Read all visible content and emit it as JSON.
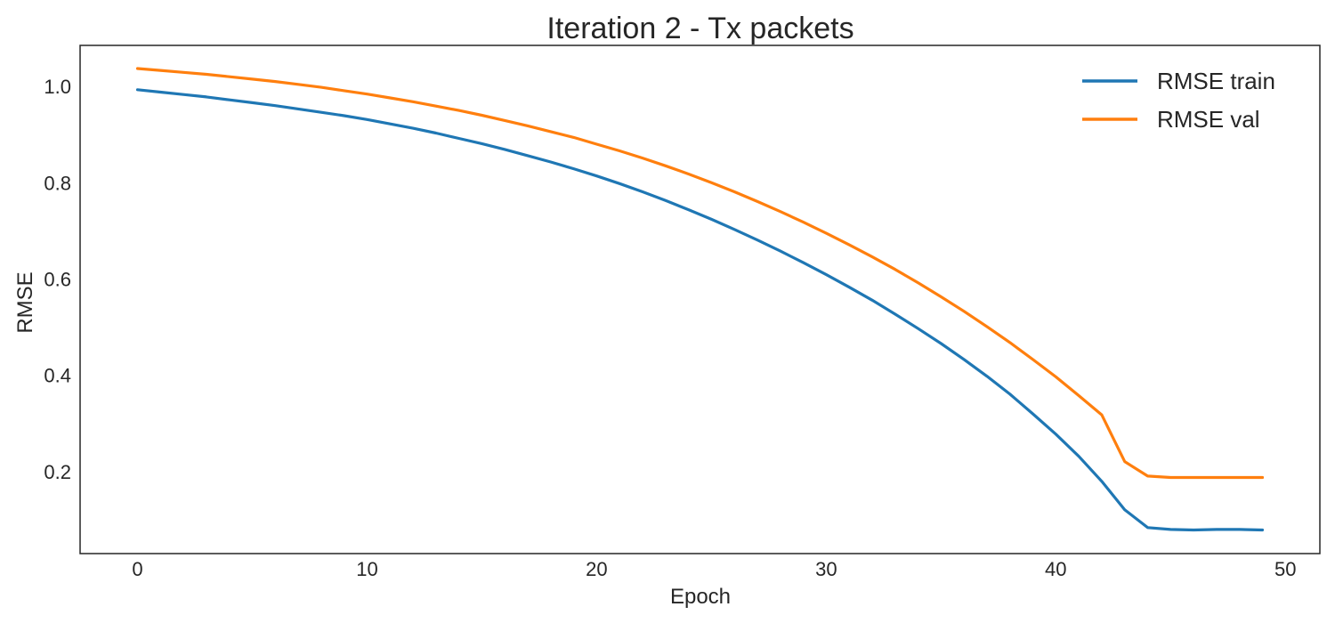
{
  "chart_data": {
    "type": "line",
    "title": "Iteration 2 - Tx packets",
    "xlabel": "Epoch",
    "ylabel": "RMSE",
    "xlim": [
      -2.5,
      51.5
    ],
    "ylim": [
      0.03,
      1.085
    ],
    "xticks": [
      0,
      10,
      20,
      30,
      40,
      50
    ],
    "yticks": [
      0.2,
      0.4,
      0.6,
      0.8,
      1.0
    ],
    "xtick_labels": [
      "0",
      "10",
      "20",
      "30",
      "40",
      "50"
    ],
    "ytick_labels": [
      "0.2",
      "0.4",
      "0.6",
      "0.8",
      "1.0"
    ],
    "grid": false,
    "legend_position": "top-right",
    "x": [
      0,
      1,
      2,
      3,
      4,
      5,
      6,
      7,
      8,
      9,
      10,
      11,
      12,
      13,
      14,
      15,
      16,
      17,
      18,
      19,
      20,
      21,
      22,
      23,
      24,
      25,
      26,
      27,
      28,
      29,
      30,
      31,
      32,
      33,
      34,
      35,
      36,
      37,
      38,
      39,
      40,
      41,
      42,
      43,
      44,
      45,
      46,
      47,
      48,
      49
    ],
    "series": [
      {
        "name": "RMSE train",
        "color": "#1f77b4",
        "values": [
          0.993,
          0.988,
          0.983,
          0.978,
          0.972,
          0.966,
          0.96,
          0.953,
          0.946,
          0.939,
          0.931,
          0.922,
          0.913,
          0.903,
          0.892,
          0.881,
          0.869,
          0.856,
          0.843,
          0.829,
          0.814,
          0.798,
          0.781,
          0.763,
          0.744,
          0.724,
          0.703,
          0.681,
          0.658,
          0.634,
          0.609,
          0.583,
          0.556,
          0.527,
          0.497,
          0.466,
          0.433,
          0.398,
          0.361,
          0.32,
          0.278,
          0.232,
          0.18,
          0.121,
          0.084,
          0.08,
          0.079,
          0.08,
          0.08,
          0.079
        ]
      },
      {
        "name": "RMSE val",
        "color": "#ff7f0e",
        "values": [
          1.037,
          1.033,
          1.029,
          1.025,
          1.02,
          1.015,
          1.01,
          1.004,
          0.998,
          0.991,
          0.984,
          0.976,
          0.968,
          0.959,
          0.95,
          0.94,
          0.929,
          0.918,
          0.906,
          0.894,
          0.88,
          0.866,
          0.851,
          0.835,
          0.818,
          0.8,
          0.781,
          0.761,
          0.74,
          0.718,
          0.695,
          0.671,
          0.646,
          0.62,
          0.592,
          0.563,
          0.533,
          0.501,
          0.468,
          0.433,
          0.397,
          0.358,
          0.318,
          0.221,
          0.191,
          0.188,
          0.188,
          0.188,
          0.188,
          0.188
        ]
      }
    ]
  }
}
